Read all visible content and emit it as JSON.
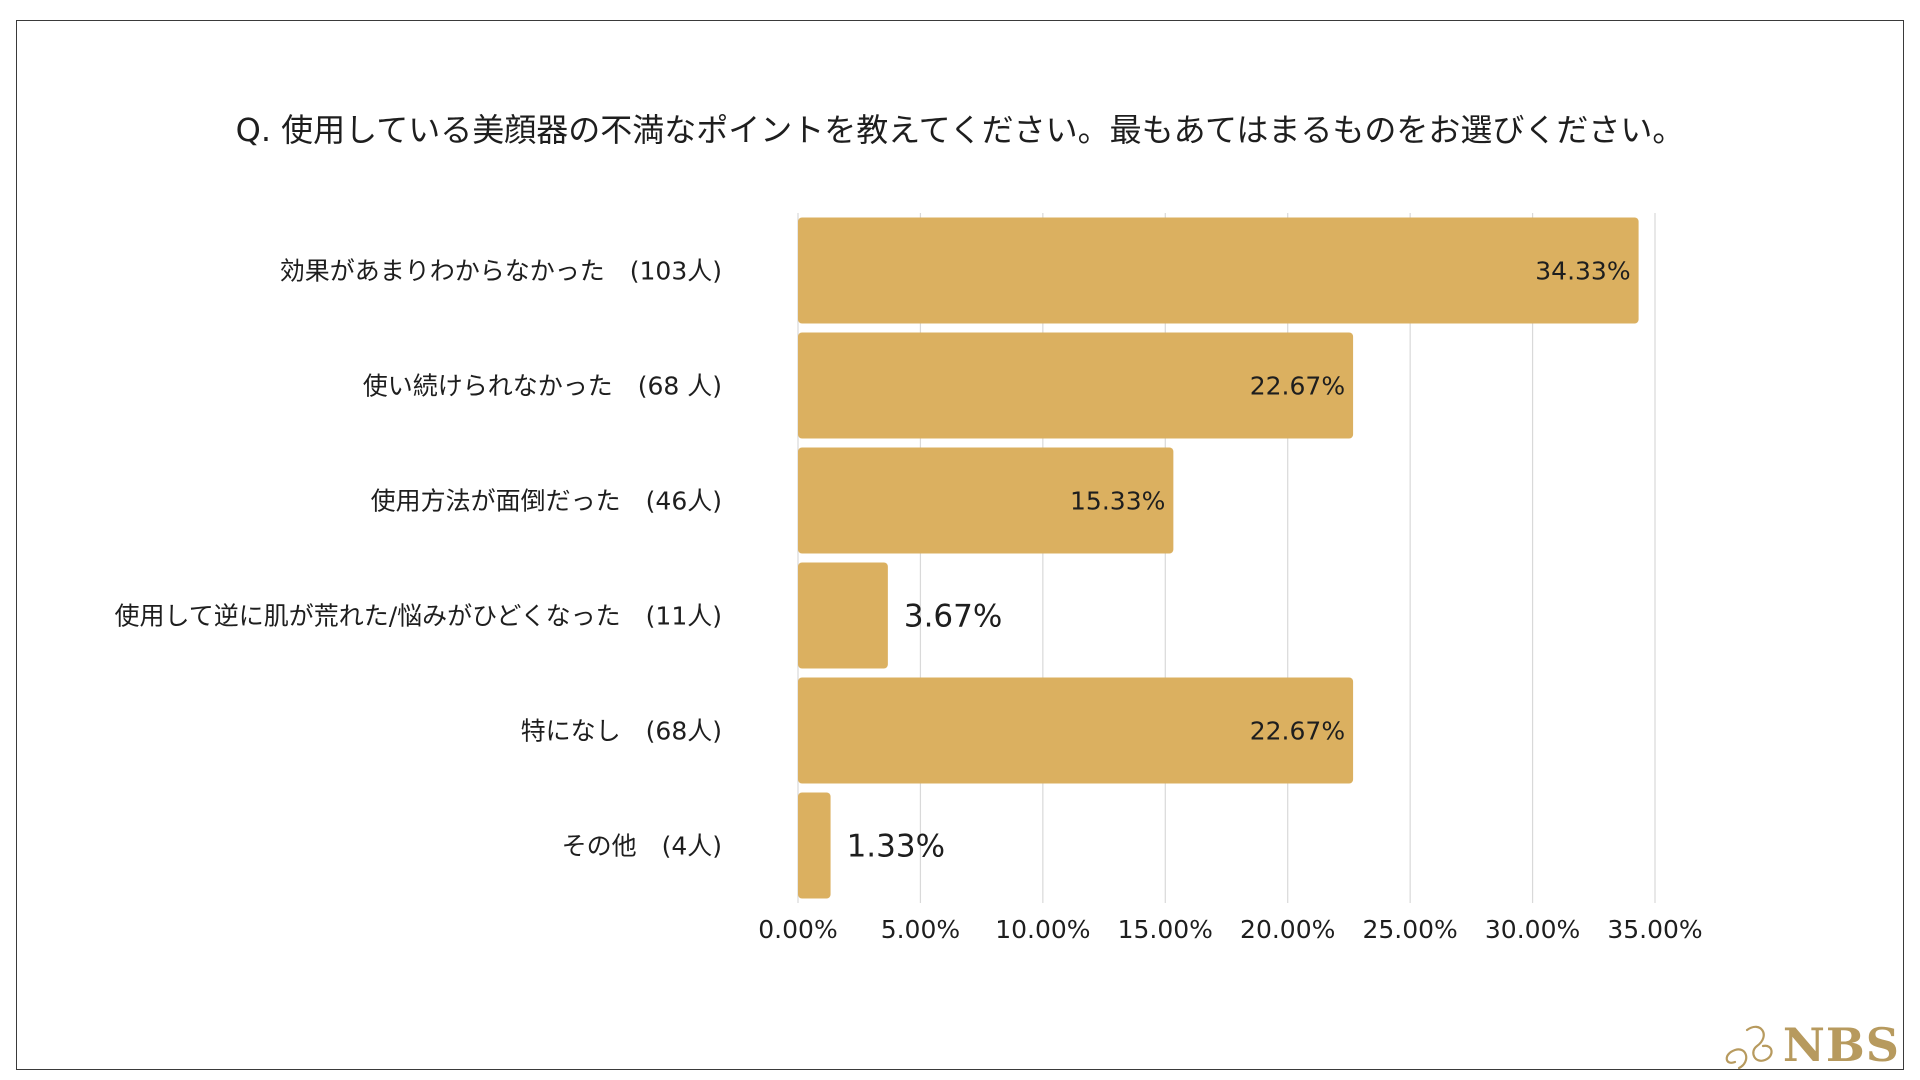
{
  "chart_data": {
    "type": "bar",
    "orientation": "horizontal",
    "title": "Q.  使用している美顔器の不満なポイントを教えてください。最もあてはまるものをお選びください。",
    "categories": [
      "効果があまりわからなかった　(103人)",
      "使い続けられなかった　(68 人)",
      "使用方法が面倒だった　(46人)",
      "使用して逆に肌が荒れた/悩みがひどくなった　(11人)",
      "特になし　(68人)",
      "その他　(4人)"
    ],
    "values": [
      34.33,
      22.67,
      15.33,
      3.67,
      22.67,
      1.33
    ],
    "value_labels": [
      "34.33%",
      "22.67%",
      "15.33%",
      "3.67%",
      "22.67%",
      "1.33%"
    ],
    "xlim": [
      0,
      35
    ],
    "xticks": [
      0,
      5,
      10,
      15,
      20,
      25,
      30,
      35
    ],
    "xtick_labels": [
      "0.00%",
      "5.00%",
      "10.00%",
      "15.00%",
      "20.00%",
      "25.00%",
      "30.00%",
      "35.00%"
    ],
    "bar_color": "#dbb060",
    "grid": true,
    "xlabel": "",
    "ylabel": ""
  },
  "logo": {
    "text": "NBS",
    "color": "#b79a5e"
  }
}
